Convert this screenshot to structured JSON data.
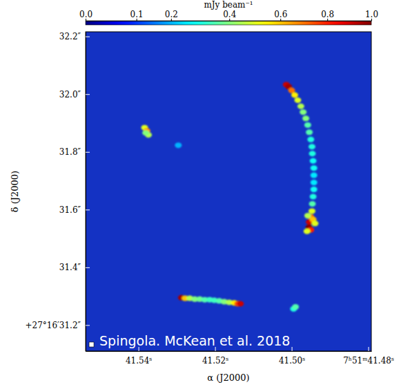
{
  "chart_data": {
    "type": "heatmap",
    "x_label": "α (J2000)",
    "y_label": "δ (J2000)",
    "annotations": [
      "Spingola. McKean et al. 2018"
    ],
    "xlim": [
      41.5538,
      41.4792
    ],
    "xticks": [
      {
        "value": 41.54,
        "label": "41.54ˢ"
      },
      {
        "value": 41.52,
        "label": "41.52ˢ"
      },
      {
        "value": 41.5,
        "label": "41.50ˢ"
      },
      {
        "value": 41.48,
        "label": "7ʰ51ᵐ41.48ˢ"
      }
    ],
    "ylim": [
      31.11,
      32.216
    ],
    "yticks": [
      {
        "value": 31.2,
        "label": "+27°16′31.2″"
      },
      {
        "value": 31.4,
        "label": "31.4″"
      },
      {
        "value": 31.6,
        "label": "31.6″"
      },
      {
        "value": 31.8,
        "label": "31.8″"
      },
      {
        "value": 32.0,
        "label": "32.0″"
      },
      {
        "value": 32.2,
        "label": "32.2″"
      }
    ],
    "colorbar": {
      "label": "mJy beam⁻¹",
      "range": [
        0,
        1
      ],
      "ticks": [
        {
          "value": 0,
          "label": "0.0"
        },
        0.1,
        0.2,
        0.4,
        0.6,
        0.8,
        {
          "value": 1,
          "label": "1.0"
        }
      ]
    },
    "cells": [
      {
        "x": 41.5014,
        "y": 32.033,
        "value": 0.9
      },
      {
        "x": 41.5008,
        "y": 32.026,
        "value": 0.95
      },
      {
        "x": 41.5,
        "y": 32.013,
        "value": 0.7
      },
      {
        "x": 41.4992,
        "y": 31.997,
        "value": 0.55
      },
      {
        "x": 41.4984,
        "y": 31.979,
        "value": 0.5
      },
      {
        "x": 41.4976,
        "y": 31.958,
        "value": 0.45
      },
      {
        "x": 41.497,
        "y": 31.938,
        "value": 0.4
      },
      {
        "x": 41.4963,
        "y": 31.916,
        "value": 0.4
      },
      {
        "x": 41.4958,
        "y": 31.893,
        "value": 0.35
      },
      {
        "x": 41.4954,
        "y": 31.868,
        "value": 0.35
      },
      {
        "x": 41.495,
        "y": 31.843,
        "value": 0.3
      },
      {
        "x": 41.4947,
        "y": 31.818,
        "value": 0.3
      },
      {
        "x": 41.4946,
        "y": 31.794,
        "value": 0.3
      },
      {
        "x": 41.4944,
        "y": 31.769,
        "value": 0.28
      },
      {
        "x": 41.4942,
        "y": 31.744,
        "value": 0.28
      },
      {
        "x": 41.4942,
        "y": 31.719,
        "value": 0.25
      },
      {
        "x": 41.4942,
        "y": 31.694,
        "value": 0.25
      },
      {
        "x": 41.4942,
        "y": 31.67,
        "value": 0.28
      },
      {
        "x": 41.4944,
        "y": 31.645,
        "value": 0.3
      },
      {
        "x": 41.4946,
        "y": 31.62,
        "value": 0.35
      },
      {
        "x": 41.4947,
        "y": 31.595,
        "value": 0.5
      },
      {
        "x": 41.495,
        "y": 31.575,
        "value": 0.7
      },
      {
        "x": 41.4954,
        "y": 31.557,
        "value": 0.9
      },
      {
        "x": 41.4955,
        "y": 31.539,
        "value": 1.0
      },
      {
        "x": 41.495,
        "y": 31.53,
        "value": 0.8
      },
      {
        "x": 41.4944,
        "y": 31.566,
        "value": 0.6
      },
      {
        "x": 41.4939,
        "y": 31.552,
        "value": 0.5
      },
      {
        "x": 41.496,
        "y": 31.525,
        "value": 0.5
      },
      {
        "x": 41.4958,
        "y": 31.579,
        "value": 0.45
      },
      {
        "x": 41.5384,
        "y": 31.884,
        "value": 0.5
      },
      {
        "x": 41.5378,
        "y": 31.873,
        "value": 0.65
      },
      {
        "x": 41.5374,
        "y": 31.859,
        "value": 0.45
      },
      {
        "x": 41.5381,
        "y": 31.866,
        "value": 0.4
      },
      {
        "x": 41.5296,
        "y": 31.823,
        "value": 0.2
      },
      {
        "x": 41.5288,
        "y": 31.295,
        "value": 0.95
      },
      {
        "x": 41.5278,
        "y": 31.293,
        "value": 0.6
      },
      {
        "x": 41.5266,
        "y": 31.293,
        "value": 0.45
      },
      {
        "x": 41.5253,
        "y": 31.29,
        "value": 0.4
      },
      {
        "x": 41.524,
        "y": 31.29,
        "value": 0.38
      },
      {
        "x": 41.5227,
        "y": 31.288,
        "value": 0.35
      },
      {
        "x": 41.5214,
        "y": 31.288,
        "value": 0.33
      },
      {
        "x": 41.5202,
        "y": 31.286,
        "value": 0.33
      },
      {
        "x": 41.5189,
        "y": 31.284,
        "value": 0.35
      },
      {
        "x": 41.5176,
        "y": 31.281,
        "value": 0.4
      },
      {
        "x": 41.5163,
        "y": 31.279,
        "value": 0.45
      },
      {
        "x": 41.515,
        "y": 31.277,
        "value": 0.55
      },
      {
        "x": 41.5141,
        "y": 31.274,
        "value": 0.75
      },
      {
        "x": 41.5134,
        "y": 31.274,
        "value": 0.9
      },
      {
        "x": 41.4995,
        "y": 31.256,
        "value": 0.3
      },
      {
        "x": 41.499,
        "y": 31.263,
        "value": 0.35
      }
    ]
  }
}
